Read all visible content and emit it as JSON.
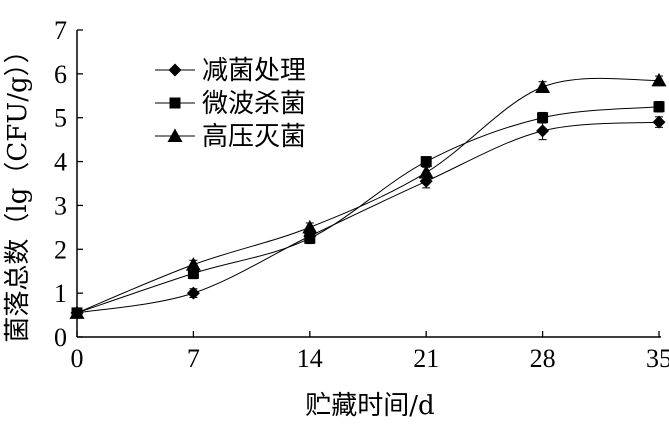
{
  "chart_data": {
    "type": "line",
    "title": "",
    "xlabel": "贮藏时间/d",
    "ylabel": "菌落总数（lg（CFU/g））",
    "x": [
      0,
      7,
      14,
      21,
      28,
      35
    ],
    "x_ticks": [
      "0",
      "7",
      "14",
      "21",
      "28",
      "35"
    ],
    "y_ticks": [
      "0",
      "1",
      "2",
      "3",
      "4",
      "5",
      "6",
      "7"
    ],
    "xlim": [
      0,
      35
    ],
    "ylim": [
      0,
      7
    ],
    "grid": false,
    "legend_position": "top-left",
    "series": [
      {
        "name": "减菌处理",
        "marker": "diamond",
        "values": [
          0.55,
          1.0,
          2.3,
          3.55,
          4.7,
          4.9
        ],
        "errors": [
          0.1,
          0.1,
          0.12,
          0.15,
          0.2,
          0.12
        ]
      },
      {
        "name": "微波杀菌",
        "marker": "square",
        "values": [
          0.55,
          1.45,
          2.25,
          4.0,
          5.0,
          5.25
        ],
        "errors": [
          0.1,
          0.12,
          0.12,
          0.1,
          0.12,
          0.12
        ]
      },
      {
        "name": "高压灭菌",
        "marker": "triangle",
        "values": [
          0.55,
          1.65,
          2.5,
          3.75,
          5.7,
          5.85
        ],
        "errors": [
          0.1,
          0.1,
          0.1,
          0.12,
          0.12,
          0.1
        ]
      }
    ],
    "colors": {
      "line": "#000000",
      "marker": "#000000"
    }
  }
}
